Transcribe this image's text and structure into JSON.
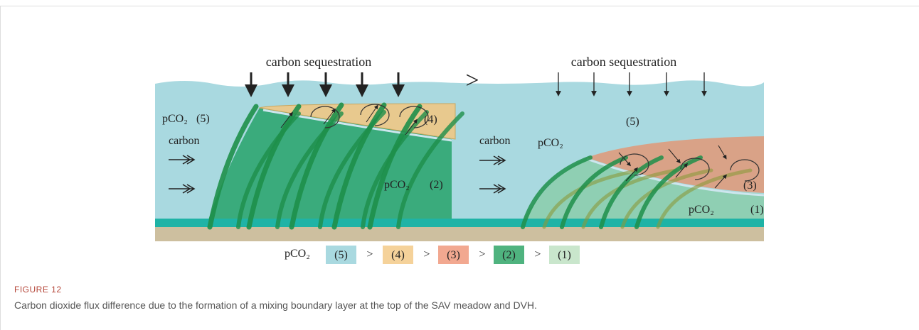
{
  "figure": {
    "left": {
      "heading": "carbon sequestration",
      "pco2_top": "pCO₂",
      "zone_top": "(5)",
      "carbon": "carbon",
      "zone_mix": "(4)",
      "pco2_meadow": "pCO₂",
      "zone_meadow": "(2)"
    },
    "comparison": ">",
    "right": {
      "heading": "carbon sequestration",
      "zone_top": "(5)",
      "carbon": "carbon",
      "pco2_mid": "pCO₂",
      "zone_mix": "(3)",
      "pco2_meadow": "pCO₂",
      "zone_meadow": "(1)"
    },
    "legend": {
      "label": "pCO₂",
      "separator": ">",
      "items": [
        "(5)",
        "(4)",
        "(3)",
        "(2)",
        "(1)"
      ]
    }
  },
  "caption": {
    "label": "FIGURE 12",
    "text": "Carbon dioxide flux difference due to the formation of a mixing boundary layer at the top of the SAV meadow and DVH."
  }
}
